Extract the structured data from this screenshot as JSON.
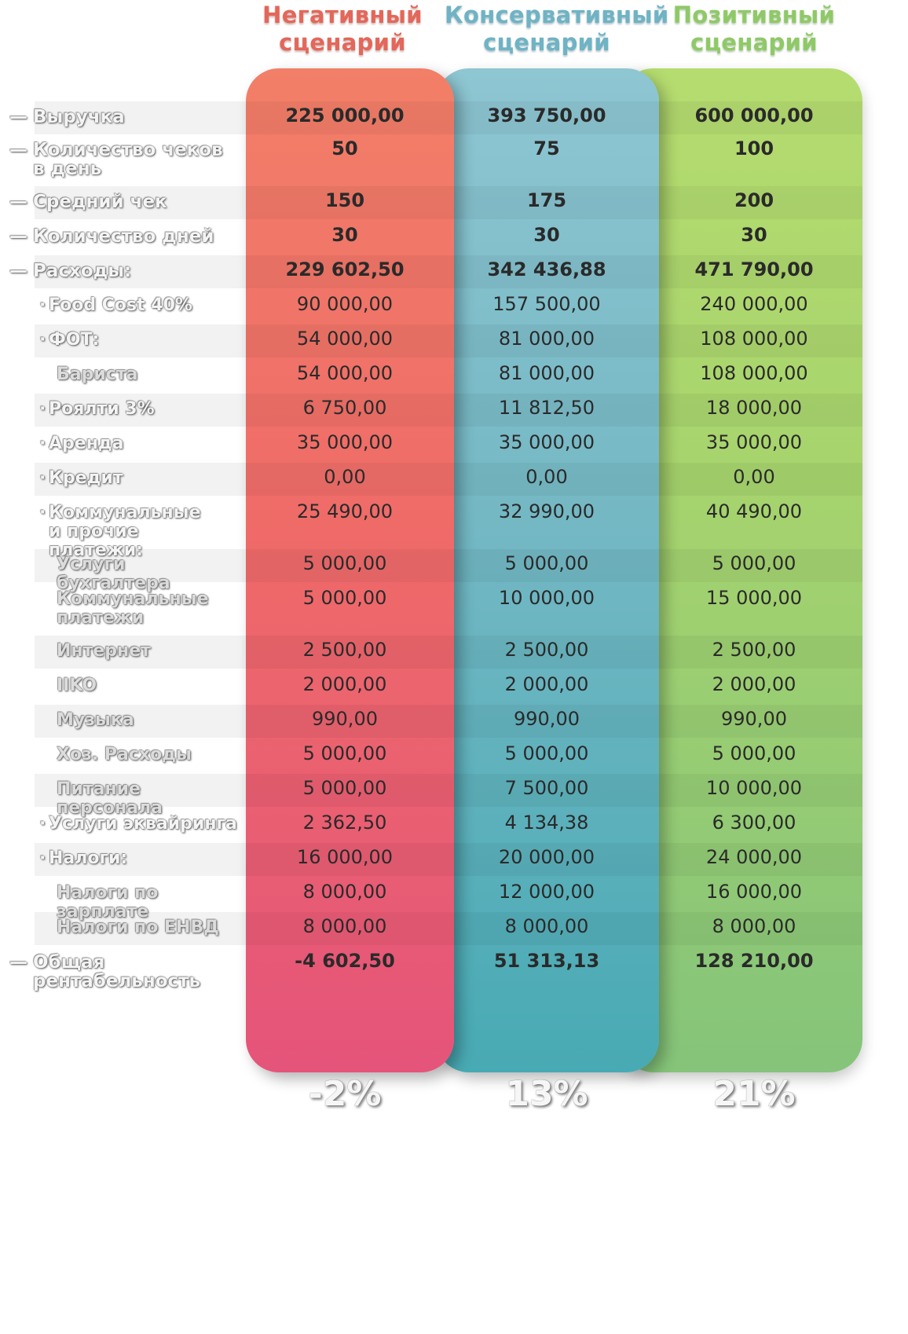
{
  "headers": {
    "negative": [
      "Негативный",
      "сценарий"
    ],
    "conservative": [
      "Консервативный",
      "сценарий"
    ],
    "positive": [
      "Позитивный",
      "сценарий"
    ]
  },
  "rows": [
    {
      "label": "Выручка",
      "level": 0,
      "bold": true,
      "values": [
        "225 000,00",
        "393 750,00",
        "600 000,00"
      ]
    },
    {
      "label": "Количество чеков\nв день",
      "level": 0,
      "bold": true,
      "values": [
        "50",
        "75",
        "100"
      ]
    },
    {
      "label": "Средний чек",
      "level": 0,
      "bold": true,
      "values": [
        "150",
        "175",
        "200"
      ]
    },
    {
      "label": "Количество дней",
      "level": 0,
      "bold": true,
      "values": [
        "30",
        "30",
        "30"
      ]
    },
    {
      "label": "Расходы:",
      "level": 0,
      "bold": true,
      "values": [
        "229 602,50",
        "342 436,88",
        "471 790,00"
      ]
    },
    {
      "label": "Food Cost 40%",
      "level": 1,
      "bold": false,
      "values": [
        "90 000,00",
        "157 500,00",
        "240 000,00"
      ]
    },
    {
      "label": "ФОТ:",
      "level": 1,
      "bold": false,
      "values": [
        "54 000,00",
        "81 000,00",
        "108 000,00"
      ]
    },
    {
      "label": "Бариста",
      "level": 2,
      "bold": false,
      "values": [
        "54 000,00",
        "81 000,00",
        "108 000,00"
      ]
    },
    {
      "label": "Роялти 3%",
      "level": 1,
      "bold": false,
      "values": [
        "6 750,00",
        "11 812,50",
        "18 000,00"
      ]
    },
    {
      "label": "Аренда",
      "level": 1,
      "bold": false,
      "values": [
        "35 000,00",
        "35 000,00",
        "35 000,00"
      ]
    },
    {
      "label": "Кредит",
      "level": 1,
      "bold": false,
      "values": [
        "0,00",
        "0,00",
        "0,00"
      ]
    },
    {
      "label": "Коммунальные\nи прочие платежи:",
      "level": 1,
      "bold": false,
      "values": [
        "25 490,00",
        "32 990,00",
        "40 490,00"
      ]
    },
    {
      "label": "Услуги бухгалтера",
      "level": 2,
      "bold": false,
      "values": [
        "5 000,00",
        "5 000,00",
        "5 000,00"
      ]
    },
    {
      "label": "Коммунальные\nплатежи",
      "level": 2,
      "bold": false,
      "values": [
        "5 000,00",
        "10 000,00",
        "15 000,00"
      ]
    },
    {
      "label": "Интернет",
      "level": 2,
      "bold": false,
      "values": [
        "2 500,00",
        "2 500,00",
        "2 500,00"
      ]
    },
    {
      "label": "IIKO",
      "level": 2,
      "bold": false,
      "values": [
        "2 000,00",
        "2 000,00",
        "2 000,00"
      ]
    },
    {
      "label": "Музыка",
      "level": 2,
      "bold": false,
      "values": [
        "990,00",
        "990,00",
        "990,00"
      ]
    },
    {
      "label": "Хоз. Расходы",
      "level": 2,
      "bold": false,
      "values": [
        "5 000,00",
        "5 000,00",
        "5 000,00"
      ]
    },
    {
      "label": "Питание персонала",
      "level": 2,
      "bold": false,
      "values": [
        "5 000,00",
        "7 500,00",
        "10 000,00"
      ]
    },
    {
      "label": "Услуги эквайринга",
      "level": 1,
      "bold": false,
      "values": [
        "2 362,50",
        "4 134,38",
        "6 300,00"
      ]
    },
    {
      "label": "Налоги:",
      "level": 1,
      "bold": false,
      "values": [
        "16 000,00",
        "20 000,00",
        "24 000,00"
      ]
    },
    {
      "label": "Налоги по зарплате",
      "level": 2,
      "bold": false,
      "values": [
        "8 000,00",
        "12 000,00",
        "16 000,00"
      ]
    },
    {
      "label": "Налоги по ЕНВД",
      "level": 2,
      "bold": false,
      "values": [
        "8 000,00",
        "8 000,00",
        "8 000,00"
      ]
    },
    {
      "label": "Общая\nрентабельность",
      "level": 0,
      "bold": true,
      "values": [
        "-4 602,50",
        "51 313,13",
        "128 210,00"
      ]
    }
  ],
  "percentages": {
    "negative": "-2%",
    "conservative": "13%",
    "positive": "21%"
  },
  "colors": {
    "negative": "#ef6b68",
    "conservative": "#74b8c4",
    "positive": "#a7d46d"
  }
}
